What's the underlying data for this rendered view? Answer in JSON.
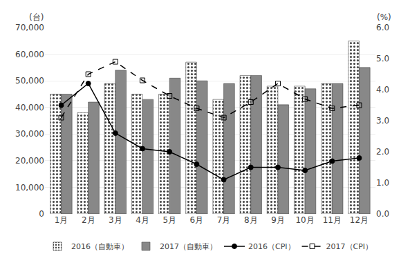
{
  "chart_data": {
    "type": "bar",
    "ylabel": "(台)",
    "y2label": "(%)",
    "categories": [
      "1月",
      "2月",
      "3月",
      "4月",
      "5月",
      "6月",
      "7月",
      "8月",
      "9月",
      "10月",
      "11月",
      "12月"
    ],
    "series": [
      {
        "name": "2016（自動車）",
        "type": "bar",
        "color": "#ffffff",
        "values": [
          45000,
          38000,
          49000,
          45000,
          45000,
          57000,
          43000,
          52000,
          48000,
          48000,
          49000,
          65000
        ]
      },
      {
        "name": "2017（自動車）",
        "type": "bar",
        "color": "#888888",
        "values": [
          45000,
          42000,
          54000,
          43000,
          51000,
          50000,
          49000,
          52000,
          41000,
          47000,
          49000,
          55000
        ]
      },
      {
        "name": "2016（CPI）",
        "type": "line",
        "axis": "y2",
        "color": "#000000",
        "marker": "circle",
        "line_style": "solid",
        "values": [
          3.5,
          4.2,
          2.6,
          2.1,
          2.0,
          1.6,
          1.1,
          1.5,
          1.5,
          1.4,
          1.7,
          1.8
        ]
      },
      {
        "name": "2017（CPI）",
        "type": "line",
        "axis": "y2",
        "color": "#000000",
        "marker": "square-open",
        "line_style": "dashed",
        "values": [
          3.1,
          4.5,
          4.9,
          4.3,
          3.8,
          3.4,
          3.1,
          3.6,
          4.2,
          3.7,
          3.4,
          3.5
        ]
      }
    ],
    "ylim": [
      0,
      70000
    ],
    "yticks": [
      0,
      {
        "value": 10000,
        "label": "10,000"
      },
      {
        "value": 20000,
        "label": "20,000"
      },
      {
        "value": 30000,
        "label": "30,000"
      },
      {
        "value": 40000,
        "label": "40,000"
      },
      {
        "value": 50000,
        "label": "50,000"
      },
      {
        "value": 60000,
        "label": "60,000"
      },
      {
        "value": 70000,
        "label": "70,000"
      }
    ],
    "y2lim": [
      0.0,
      6.0
    ],
    "y2ticks": [
      {
        "value": 0.0,
        "label": "0.0"
      },
      {
        "value": 1.0,
        "label": "1.0"
      },
      {
        "value": 2.0,
        "label": "2.0"
      },
      {
        "value": 3.0,
        "label": "3.0"
      },
      {
        "value": 4.0,
        "label": "4.0"
      },
      {
        "value": 5.0,
        "label": "5.0"
      },
      {
        "value": 6.0,
        "label": "6.0"
      }
    ],
    "grid": true,
    "legend": "bottom"
  }
}
